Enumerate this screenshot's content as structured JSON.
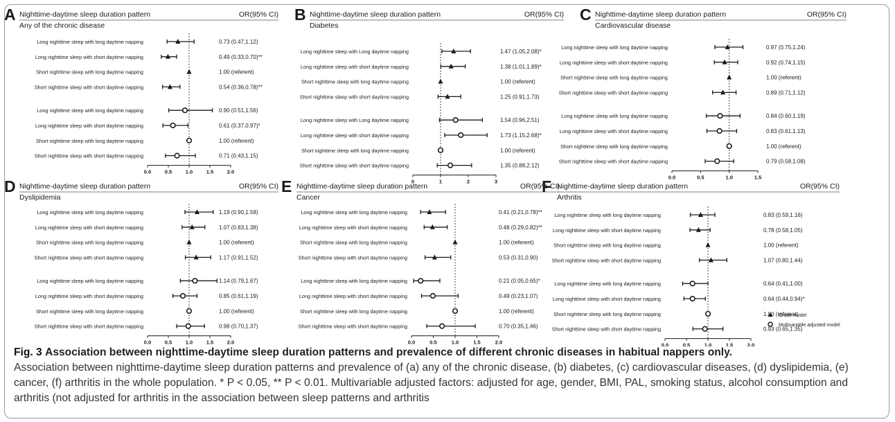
{
  "figure": {
    "label": "Fig. 3",
    "caption_title": "Association between nighttime-daytime sleep duration patterns and prevalence of different chronic diseases in habitual nappers only.",
    "caption_body": "Association between nighttime-daytime sleep duration patterns and prevalence of (a) any of the chronic disease, (b) diabetes, (c) cardiovascular diseases, (d) dyslipidemia, (e) cancer, (f) arthritis in the whole population. * P < 0.05, ** P < 0.01. Multivariable adjusted factors: adjusted for age, gender, BMI, PAL, smoking status, alcohol consumption and arthritis (not adjusted for arthritis in the association between sleep patterns and arthritis"
  },
  "legend": {
    "crude": "Crude model",
    "adjusted": "Multivariable adjusted model"
  },
  "colors": {
    "ink": "#1a1a1a",
    "rule": "#555555"
  },
  "chart_data": [
    {
      "type": "forest",
      "panel": "A",
      "header_left": "Nighttime-daytime sleep duration pattern",
      "header_right": "OR(95% CI)",
      "subtitle": "Any of the chronic disease",
      "xlim": [
        0,
        2
      ],
      "xticks": [
        "0.0",
        "0.5",
        "1.0",
        "1.5",
        "2.0"
      ],
      "reference_line": 1,
      "rows": [
        {
          "label": "Long nighttime sleep with long daytime napping",
          "model": "crude",
          "or": 0.73,
          "lo": 0.47,
          "hi": 1.12,
          "text": "0.73 (0.47,1.12)"
        },
        {
          "label": "Long nighttime sleep with short daytime napping",
          "model": "crude",
          "or": 0.49,
          "lo": 0.33,
          "hi": 0.7,
          "text": "0.49 (0.33,0.70)**"
        },
        {
          "label": "Short nighttime sleep with long daytime napping",
          "model": "crude",
          "or": 1.0,
          "lo": 1.0,
          "hi": 1.0,
          "text": "1.00 (referent)"
        },
        {
          "label": "Short nighttime sleep with short daytime napping",
          "model": "crude",
          "or": 0.54,
          "lo": 0.36,
          "hi": 0.78,
          "text": "0.54 (0.36,0.78)**"
        },
        {
          "label": "Long nighttime sleep with long daytime napping",
          "model": "adjusted",
          "or": 0.9,
          "lo": 0.51,
          "hi": 1.56,
          "text": "0.90 (0.51,1.56)"
        },
        {
          "label": "Long nighttime sleep with short daytime napping",
          "model": "adjusted",
          "or": 0.61,
          "lo": 0.37,
          "hi": 0.97,
          "text": "0.61 (0.37,0.97)*"
        },
        {
          "label": "Short nighttime sleep with long daytime napping",
          "model": "adjusted",
          "or": 1.0,
          "lo": 1.0,
          "hi": 1.0,
          "text": "1.00 (referent)"
        },
        {
          "label": "Short nighttime sleep with short daytime napping",
          "model": "adjusted",
          "or": 0.71,
          "lo": 0.43,
          "hi": 1.15,
          "text": "0.71 (0.43,1.15)"
        }
      ]
    },
    {
      "type": "forest",
      "panel": "B",
      "header_left": "Nighttime-daytime sleep duration pattern",
      "header_right": "OR(95% CI)",
      "subtitle": "Diabetes",
      "xlim": [
        0,
        3
      ],
      "xticks": [
        "0",
        "1",
        "2",
        "3"
      ],
      "reference_line": 1,
      "rows": [
        {
          "label": "Long nighttime sleep with Long daytime napping",
          "model": "crude",
          "or": 1.47,
          "lo": 1.05,
          "hi": 2.08,
          "text": "1.47 (1.05,2.08)*"
        },
        {
          "label": "Long nighttime sleep with short daytime napping",
          "model": "crude",
          "or": 1.38,
          "lo": 1.01,
          "hi": 1.89,
          "text": "1.38 (1.01,1.89)*"
        },
        {
          "label": "Short nighttime sleep with long daytime napping",
          "model": "crude",
          "or": 1.0,
          "lo": 1.0,
          "hi": 1.0,
          "text": "1.00 (referent)"
        },
        {
          "label": "Short nighttime sleep with short daytime napping",
          "model": "crude",
          "or": 1.25,
          "lo": 0.91,
          "hi": 1.73,
          "text": "1.25 (0.91,1.73)"
        },
        {
          "label": "Long nighttime sleep with Long daytime napping",
          "model": "adjusted",
          "or": 1.54,
          "lo": 0.96,
          "hi": 2.51,
          "text": "1.54 (0.96,2.51)"
        },
        {
          "label": "Long nighttime sleep with short daytime napping",
          "model": "adjusted",
          "or": 1.73,
          "lo": 1.15,
          "hi": 2.68,
          "text": "1.73 (1.15,2.68)*"
        },
        {
          "label": "Short nighttime sleep with long daytime napping",
          "model": "adjusted",
          "or": 1.0,
          "lo": 1.0,
          "hi": 1.0,
          "text": "1.00 (referent)"
        },
        {
          "label": "Short nighttime sleep with short daytime napping",
          "model": "adjusted",
          "or": 1.35,
          "lo": 0.88,
          "hi": 2.12,
          "text": "1.35 (0.88,2.12)"
        }
      ]
    },
    {
      "type": "forest",
      "panel": "C",
      "header_left": "Nighttime-daytime sleep duration pattern",
      "header_right": "OR(95% CI)",
      "subtitle": "Cardiovascular disease",
      "xlim": [
        0,
        1.5
      ],
      "xticks": [
        "0.0",
        "0.5",
        "1.0",
        "1.5"
      ],
      "reference_line": 1,
      "rows": [
        {
          "label": "Long nighttime sleep with long daytime napping",
          "model": "crude",
          "or": 0.97,
          "lo": 0.75,
          "hi": 1.24,
          "text": "0.97 (0.75,1.24)"
        },
        {
          "label": "Long nighttime sleep with short daytime napping",
          "model": "crude",
          "or": 0.92,
          "lo": 0.74,
          "hi": 1.15,
          "text": "0.92 (0.74,1.15)"
        },
        {
          "label": "Short nighttime sleep with long daytime napping",
          "model": "crude",
          "or": 1.0,
          "lo": 1.0,
          "hi": 1.0,
          "text": "1.00 (referent)"
        },
        {
          "label": "Short nighttime sleep with short daytime napping",
          "model": "crude",
          "or": 0.89,
          "lo": 0.71,
          "hi": 1.12,
          "text": "0.89 (0.71,1.12)"
        },
        {
          "label": "Long nighttime sleep with long daytime napping",
          "model": "adjusted",
          "or": 0.84,
          "lo": 0.6,
          "hi": 1.19,
          "text": "0.84 (0.60,1.19)"
        },
        {
          "label": "Long nighttime sleep with short daytime napping",
          "model": "adjusted",
          "or": 0.83,
          "lo": 0.61,
          "hi": 1.13,
          "text": "0.83 (0.61,1.13)"
        },
        {
          "label": "Short nighttime sleep with long daytime napping",
          "model": "adjusted",
          "or": 1.0,
          "lo": 1.0,
          "hi": 1.0,
          "text": "1.00 (referent)"
        },
        {
          "label": "Short nighttime sleep with short daytime napping",
          "model": "adjusted",
          "or": 0.79,
          "lo": 0.58,
          "hi": 1.08,
          "text": "0.79 (0.58,1.08)"
        }
      ]
    },
    {
      "type": "forest",
      "panel": "D",
      "header_left": "Nighttime-daytime sleep duration pattern",
      "header_right": "OR(95% CI)",
      "subtitle": "Dyslipidemia",
      "xlim": [
        0,
        2
      ],
      "xticks": [
        "0.0",
        "0.5",
        "1.0",
        "1.5",
        "2.0"
      ],
      "reference_line": 1,
      "rows": [
        {
          "label": "Long nighttime sleep with long daytime napping",
          "model": "crude",
          "or": 1.19,
          "lo": 0.9,
          "hi": 1.58,
          "text": "1.19 (0.90,1.58)"
        },
        {
          "label": "Long nighttime sleep with short daytime napping",
          "model": "crude",
          "or": 1.07,
          "lo": 0.83,
          "hi": 1.38,
          "text": "1.07 (0.83,1.38)"
        },
        {
          "label": "Short nighttime sleep with long daytime napping",
          "model": "crude",
          "or": 1.0,
          "lo": 1.0,
          "hi": 1.0,
          "text": "1.00 (referent)"
        },
        {
          "label": "Short nighttime sleep with short daytime napping",
          "model": "crude",
          "or": 1.17,
          "lo": 0.91,
          "hi": 1.52,
          "text": "1.17 (0.91,1.52)"
        },
        {
          "label": "Long nighttime sleep with long daytime napping",
          "model": "adjusted",
          "or": 1.14,
          "lo": 0.79,
          "hi": 1.67,
          "text": "1.14 (0.79,1.67)"
        },
        {
          "label": "Long nighttime sleep with short daytime napping",
          "model": "adjusted",
          "or": 0.85,
          "lo": 0.61,
          "hi": 1.19,
          "text": "0.85 (0.61,1.19)"
        },
        {
          "label": "Short nighttime sleep with long daytime napping",
          "model": "adjusted",
          "or": 1.0,
          "lo": 1.0,
          "hi": 1.0,
          "text": "1.00 (referent)"
        },
        {
          "label": "Short nighttime sleep with short daytime napping",
          "model": "adjusted",
          "or": 0.98,
          "lo": 0.7,
          "hi": 1.37,
          "text": "0.98 (0.70,1.37)"
        }
      ]
    },
    {
      "type": "forest",
      "panel": "E",
      "header_left": "Nighttime-daytime sleep duration pattern",
      "header_right": "OR(95% CI)",
      "subtitle": "Cancer",
      "xlim": [
        0,
        2
      ],
      "xticks": [
        "0.0",
        "0.5",
        "1.0",
        "1.5",
        "2.0"
      ],
      "reference_line": 1,
      "rows": [
        {
          "label": "Long nighttime sleep with long daytime napping",
          "model": "crude",
          "or": 0.41,
          "lo": 0.21,
          "hi": 0.78,
          "text": "0.41 (0.21,0.78)**"
        },
        {
          "label": "Long nighttime sleep with short daytime napping",
          "model": "crude",
          "or": 0.48,
          "lo": 0.29,
          "hi": 0.82,
          "text": "0.48 (0.29,0.82)**"
        },
        {
          "label": "Short nighttime sleep with long daytime napping",
          "model": "crude",
          "or": 1.0,
          "lo": 1.0,
          "hi": 1.0,
          "text": "1.00 (referent)"
        },
        {
          "label": "Short nighttime sleep with short daytime napping",
          "model": "crude",
          "or": 0.53,
          "lo": 0.31,
          "hi": 0.9,
          "text": "0.53 (0.31,0.90)"
        },
        {
          "label": "Long nighttime sleep with long daytime napping",
          "model": "adjusted",
          "or": 0.21,
          "lo": 0.05,
          "hi": 0.65,
          "text": "0.21 (0.05,0.65)*"
        },
        {
          "label": "Long nighttime sleep with short daytime napping",
          "model": "adjusted",
          "or": 0.49,
          "lo": 0.23,
          "hi": 1.07,
          "text": "0.49 (0.23,1.07)"
        },
        {
          "label": "Short nighttime sleep with long daytime napping",
          "model": "adjusted",
          "or": 1.0,
          "lo": 1.0,
          "hi": 1.0,
          "text": "1.00 (referent)"
        },
        {
          "label": "Short nighttime sleep with short daytime napping",
          "model": "adjusted",
          "or": 0.7,
          "lo": 0.35,
          "hi": 1.46,
          "text": "0.70 (0.35,1.46)"
        }
      ]
    },
    {
      "type": "forest",
      "panel": "F",
      "header_left": "Nighttime-daytime sleep duration pattern",
      "header_right": "OR(95% CI)",
      "subtitle": "Arthritis",
      "xlim": [
        0,
        2
      ],
      "xticks": [
        "0.0",
        "0.5",
        "1.0",
        "1.5",
        "2.0"
      ],
      "reference_line": 1,
      "rows": [
        {
          "label": "Long nighttime sleep with long daytime napping",
          "model": "crude",
          "or": 0.83,
          "lo": 0.59,
          "hi": 1.16,
          "text": "0.83 (0.59,1.16)"
        },
        {
          "label": "Long nighttime sleep with short daytime napping",
          "model": "crude",
          "or": 0.78,
          "lo": 0.58,
          "hi": 1.05,
          "text": "0.78 (0.58,1.05)"
        },
        {
          "label": "Short nighttime sleep with long daytime napping",
          "model": "crude",
          "or": 1.0,
          "lo": 1.0,
          "hi": 1.0,
          "text": "1.00 (referent)"
        },
        {
          "label": "Short nighttime sleep with short daytime napping",
          "model": "crude",
          "or": 1.07,
          "lo": 0.8,
          "hi": 1.44,
          "text": "1.07 (0.80,1.44)"
        },
        {
          "label": "Long nighttime sleep with long daytime napping",
          "model": "adjusted",
          "or": 0.64,
          "lo": 0.41,
          "hi": 1.0,
          "text": "0.64 (0.41,1.00)"
        },
        {
          "label": "Long nighttime sleep with short daytime napping",
          "model": "adjusted",
          "or": 0.64,
          "lo": 0.44,
          "hi": 0.94,
          "text": "0.64 (0.44,0.94)*"
        },
        {
          "label": "Short nighttime sleep with long daytime napping",
          "model": "adjusted",
          "or": 1.0,
          "lo": 1.0,
          "hi": 1.0,
          "text": "1.00 (referent)"
        },
        {
          "label": "Short nighttime sleep with short daytime napping",
          "model": "adjusted",
          "or": 0.93,
          "lo": 0.65,
          "hi": 1.35,
          "text": "0.93 (0.65,1.35)"
        }
      ]
    }
  ]
}
